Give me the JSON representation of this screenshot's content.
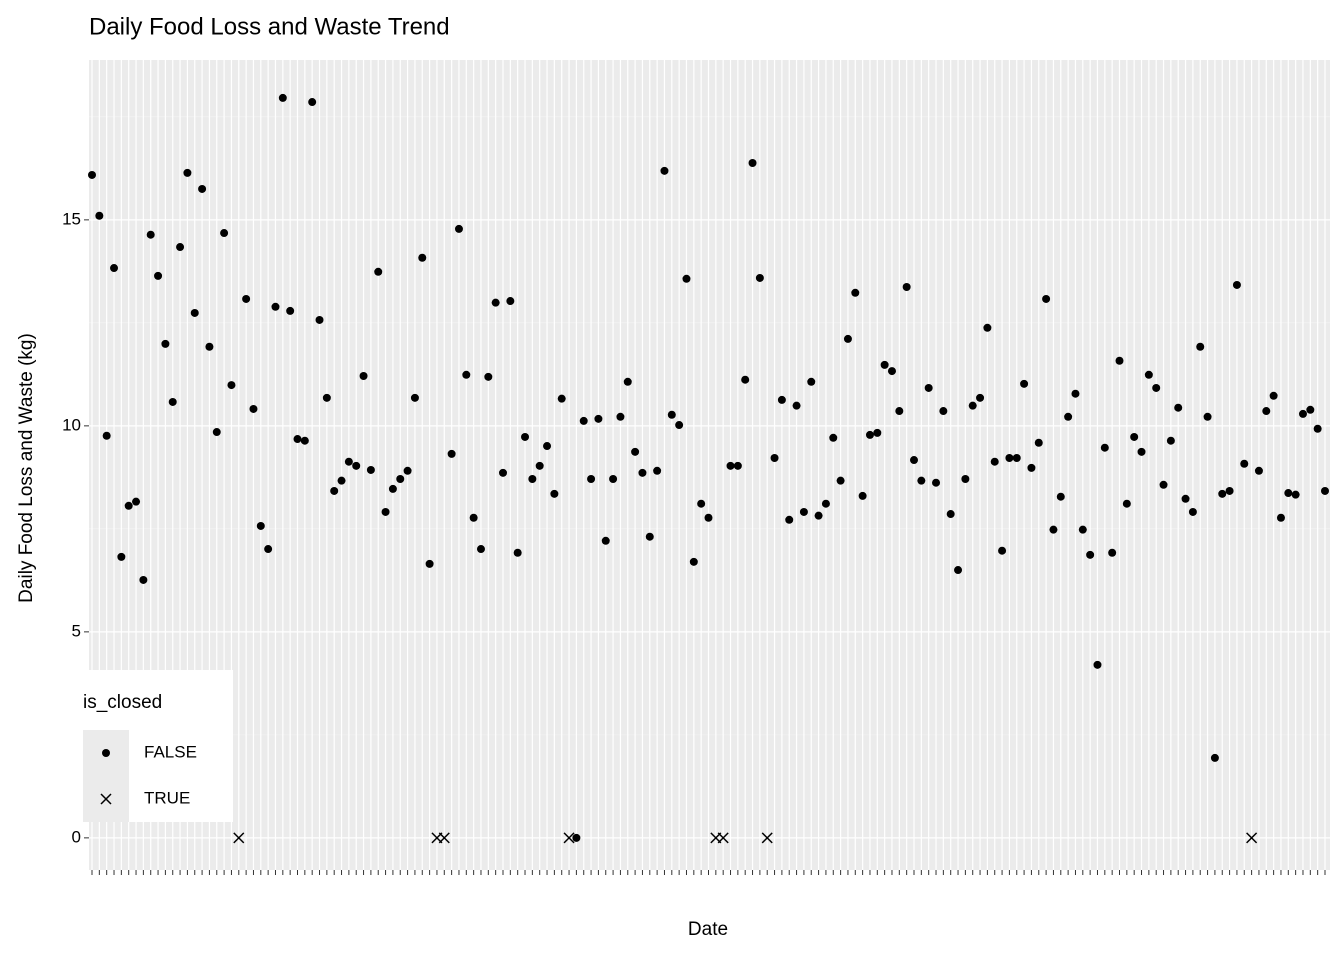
{
  "chart_data": {
    "type": "scatter",
    "title": "Daily Food Loss and Waste Trend",
    "x_label": "Date",
    "y_label": "Daily Food Loss and Waste (kg)",
    "legend_title": "is_closed",
    "legend_position": "bottom-left",
    "grid": true,
    "ylim": [
      -0.78,
      18.88
    ],
    "yticks": [
      0,
      5,
      10,
      15
    ],
    "yminorticks": [
      2.5,
      7.5,
      12.5,
      17.5
    ],
    "categories": [
      null,
      null,
      null,
      null,
      null,
      null,
      null,
      null,
      null,
      null,
      null,
      null,
      null,
      null,
      null,
      null,
      null,
      null,
      null,
      null,
      null,
      null,
      null,
      null,
      null,
      null,
      null,
      null,
      null,
      null,
      null,
      null,
      null,
      null,
      null,
      null,
      null,
      null,
      null,
      null,
      null,
      null,
      null,
      null,
      null,
      null,
      null,
      null,
      null,
      null,
      null,
      null,
      null,
      null,
      null,
      null,
      null,
      null,
      null,
      null,
      null,
      null,
      null,
      null,
      null,
      null,
      null,
      null,
      null,
      null,
      null,
      null,
      null,
      null,
      null,
      null,
      null,
      null,
      null,
      null,
      null,
      null,
      null,
      null,
      null,
      null,
      null,
      null,
      null,
      null,
      null,
      null,
      null,
      null,
      null,
      null,
      null,
      null,
      null,
      null,
      null,
      null,
      null,
      null,
      null,
      null,
      null,
      null,
      null,
      null,
      null,
      null,
      null,
      null,
      null,
      null,
      null,
      null,
      null,
      null,
      null,
      null,
      null,
      null,
      null,
      null,
      null,
      null,
      null,
      null,
      null,
      null,
      null,
      null,
      null,
      null,
      null,
      null,
      null,
      null,
      null,
      null,
      null,
      null,
      null,
      null,
      null,
      null,
      null,
      null,
      null,
      null,
      null,
      null,
      null,
      null,
      null,
      null,
      null,
      null,
      null,
      null,
      null,
      null,
      null,
      null,
      null,
      null,
      null
    ],
    "series": [
      {
        "name": "FALSE",
        "color": "#000000",
        "marker": "dot",
        "values": [
          16.09,
          15.1,
          9.76,
          13.83,
          6.82,
          8.06,
          8.16,
          6.26,
          14.64,
          13.64,
          11.99,
          10.58,
          14.34,
          16.14,
          12.74,
          15.75,
          11.92,
          9.85,
          14.68,
          10.99,
          null,
          13.08,
          10.41,
          7.57,
          7.01,
          12.89,
          17.96,
          12.79,
          9.68,
          9.64,
          17.86,
          12.57,
          10.68,
          8.42,
          8.67,
          9.13,
          9.03,
          11.21,
          8.93,
          13.74,
          7.91,
          8.47,
          8.71,
          8.91,
          10.68,
          14.08,
          6.65,
          null,
          null,
          9.32,
          14.78,
          11.24,
          7.77,
          7.01,
          11.19,
          12.99,
          8.86,
          13.03,
          6.92,
          9.73,
          8.71,
          9.03,
          9.51,
          8.35,
          10.66,
          null,
          0,
          10.12,
          8.71,
          10.17,
          7.21,
          8.71,
          10.22,
          11.07,
          9.37,
          8.86,
          7.31,
          8.91,
          16.19,
          10.27,
          10.02,
          13.57,
          6.7,
          8.11,
          7.77,
          null,
          null,
          9.03,
          9.03,
          11.12,
          16.38,
          13.59,
          null,
          9.22,
          10.63,
          7.72,
          10.49,
          7.91,
          11.07,
          7.82,
          8.11,
          9.71,
          8.67,
          12.11,
          13.23,
          8.3,
          9.78,
          9.83,
          11.48,
          11.33,
          10.36,
          13.37,
          9.17,
          8.67,
          10.92,
          8.62,
          10.36,
          7.86,
          6.5,
          8.71,
          10.49,
          10.68,
          12.38,
          9.13,
          6.97,
          9.22,
          9.22,
          11.02,
          8.98,
          9.59,
          13.08,
          7.48,
          8.28,
          10.22,
          10.78,
          7.48,
          6.87,
          4.2,
          9.47,
          6.92,
          11.58,
          8.11,
          9.73,
          9.37,
          11.24,
          10.92,
          8.57,
          9.64,
          10.44,
          8.23,
          7.91,
          11.92,
          10.22,
          1.94,
          8.35,
          8.42,
          13.42,
          9.08,
          null,
          8.91,
          10.36,
          10.73,
          7.77,
          8.37,
          8.33,
          10.29,
          10.39,
          9.93,
          8.42
        ]
      },
      {
        "name": "TRUE",
        "color": "#000000",
        "marker": "cross",
        "values": [
          null,
          null,
          null,
          null,
          null,
          null,
          null,
          null,
          null,
          null,
          null,
          null,
          null,
          null,
          null,
          null,
          null,
          null,
          null,
          null,
          0,
          null,
          null,
          null,
          null,
          null,
          null,
          null,
          null,
          null,
          null,
          null,
          null,
          null,
          null,
          null,
          null,
          null,
          null,
          null,
          null,
          null,
          null,
          null,
          null,
          null,
          null,
          0,
          0,
          null,
          null,
          null,
          null,
          null,
          null,
          null,
          null,
          null,
          null,
          null,
          null,
          null,
          null,
          null,
          null,
          0,
          null,
          null,
          null,
          null,
          null,
          null,
          null,
          null,
          null,
          null,
          null,
          null,
          null,
          null,
          null,
          null,
          null,
          null,
          null,
          0,
          0,
          null,
          null,
          null,
          null,
          null,
          0,
          null,
          null,
          null,
          null,
          null,
          null,
          null,
          null,
          null,
          null,
          null,
          null,
          null,
          null,
          null,
          null,
          null,
          null,
          null,
          null,
          null,
          null,
          null,
          null,
          null,
          null,
          null,
          null,
          null,
          null,
          null,
          null,
          null,
          null,
          null,
          null,
          null,
          null,
          null,
          null,
          null,
          null,
          null,
          null,
          null,
          null,
          null,
          null,
          null,
          null,
          null,
          null,
          null,
          null,
          null,
          null,
          null,
          null,
          null,
          null,
          null,
          null,
          null,
          null,
          null,
          0,
          null,
          null,
          null,
          null,
          null,
          null,
          null,
          null,
          null,
          null
        ]
      }
    ]
  }
}
